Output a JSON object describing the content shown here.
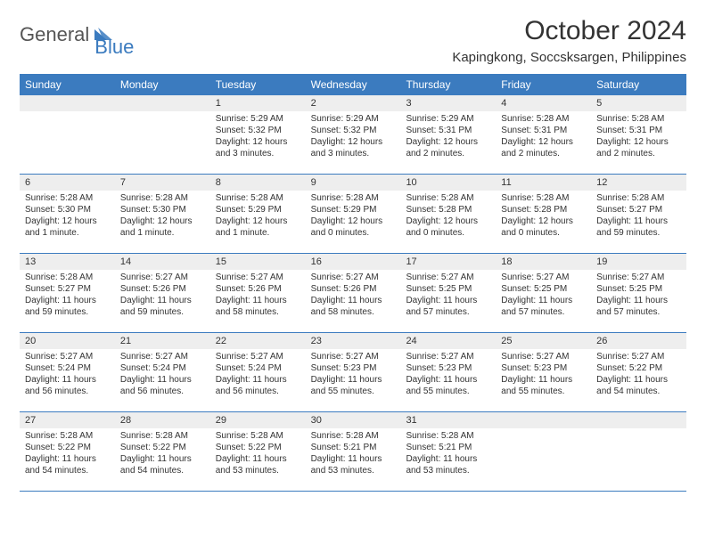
{
  "logo": {
    "part1": "General",
    "part2": "Blue"
  },
  "title": "October 2024",
  "location": "Kapingkong, Soccsksargen, Philippines",
  "colors": {
    "header_bg": "#3b7bbf",
    "header_text": "#ffffff",
    "daynum_bg": "#eeeeee",
    "border": "#3b7bbf",
    "text": "#333333",
    "logo_blue": "#3b7bbf",
    "logo_gray": "#555555",
    "background": "#ffffff"
  },
  "fonts": {
    "title_size": 30,
    "location_size": 15,
    "header_cell_size": 12,
    "daynum_size": 11,
    "body_size": 10
  },
  "day_headers": [
    "Sunday",
    "Monday",
    "Tuesday",
    "Wednesday",
    "Thursday",
    "Friday",
    "Saturday"
  ],
  "weeks": [
    [
      {
        "empty": true
      },
      {
        "empty": true
      },
      {
        "num": "1",
        "sunrise": "Sunrise: 5:29 AM",
        "sunset": "Sunset: 5:32 PM",
        "daylight1": "Daylight: 12 hours",
        "daylight2": "and 3 minutes."
      },
      {
        "num": "2",
        "sunrise": "Sunrise: 5:29 AM",
        "sunset": "Sunset: 5:32 PM",
        "daylight1": "Daylight: 12 hours",
        "daylight2": "and 3 minutes."
      },
      {
        "num": "3",
        "sunrise": "Sunrise: 5:29 AM",
        "sunset": "Sunset: 5:31 PM",
        "daylight1": "Daylight: 12 hours",
        "daylight2": "and 2 minutes."
      },
      {
        "num": "4",
        "sunrise": "Sunrise: 5:28 AM",
        "sunset": "Sunset: 5:31 PM",
        "daylight1": "Daylight: 12 hours",
        "daylight2": "and 2 minutes."
      },
      {
        "num": "5",
        "sunrise": "Sunrise: 5:28 AM",
        "sunset": "Sunset: 5:31 PM",
        "daylight1": "Daylight: 12 hours",
        "daylight2": "and 2 minutes."
      }
    ],
    [
      {
        "num": "6",
        "sunrise": "Sunrise: 5:28 AM",
        "sunset": "Sunset: 5:30 PM",
        "daylight1": "Daylight: 12 hours",
        "daylight2": "and 1 minute."
      },
      {
        "num": "7",
        "sunrise": "Sunrise: 5:28 AM",
        "sunset": "Sunset: 5:30 PM",
        "daylight1": "Daylight: 12 hours",
        "daylight2": "and 1 minute."
      },
      {
        "num": "8",
        "sunrise": "Sunrise: 5:28 AM",
        "sunset": "Sunset: 5:29 PM",
        "daylight1": "Daylight: 12 hours",
        "daylight2": "and 1 minute."
      },
      {
        "num": "9",
        "sunrise": "Sunrise: 5:28 AM",
        "sunset": "Sunset: 5:29 PM",
        "daylight1": "Daylight: 12 hours",
        "daylight2": "and 0 minutes."
      },
      {
        "num": "10",
        "sunrise": "Sunrise: 5:28 AM",
        "sunset": "Sunset: 5:28 PM",
        "daylight1": "Daylight: 12 hours",
        "daylight2": "and 0 minutes."
      },
      {
        "num": "11",
        "sunrise": "Sunrise: 5:28 AM",
        "sunset": "Sunset: 5:28 PM",
        "daylight1": "Daylight: 12 hours",
        "daylight2": "and 0 minutes."
      },
      {
        "num": "12",
        "sunrise": "Sunrise: 5:28 AM",
        "sunset": "Sunset: 5:27 PM",
        "daylight1": "Daylight: 11 hours",
        "daylight2": "and 59 minutes."
      }
    ],
    [
      {
        "num": "13",
        "sunrise": "Sunrise: 5:28 AM",
        "sunset": "Sunset: 5:27 PM",
        "daylight1": "Daylight: 11 hours",
        "daylight2": "and 59 minutes."
      },
      {
        "num": "14",
        "sunrise": "Sunrise: 5:27 AM",
        "sunset": "Sunset: 5:26 PM",
        "daylight1": "Daylight: 11 hours",
        "daylight2": "and 59 minutes."
      },
      {
        "num": "15",
        "sunrise": "Sunrise: 5:27 AM",
        "sunset": "Sunset: 5:26 PM",
        "daylight1": "Daylight: 11 hours",
        "daylight2": "and 58 minutes."
      },
      {
        "num": "16",
        "sunrise": "Sunrise: 5:27 AM",
        "sunset": "Sunset: 5:26 PM",
        "daylight1": "Daylight: 11 hours",
        "daylight2": "and 58 minutes."
      },
      {
        "num": "17",
        "sunrise": "Sunrise: 5:27 AM",
        "sunset": "Sunset: 5:25 PM",
        "daylight1": "Daylight: 11 hours",
        "daylight2": "and 57 minutes."
      },
      {
        "num": "18",
        "sunrise": "Sunrise: 5:27 AM",
        "sunset": "Sunset: 5:25 PM",
        "daylight1": "Daylight: 11 hours",
        "daylight2": "and 57 minutes."
      },
      {
        "num": "19",
        "sunrise": "Sunrise: 5:27 AM",
        "sunset": "Sunset: 5:25 PM",
        "daylight1": "Daylight: 11 hours",
        "daylight2": "and 57 minutes."
      }
    ],
    [
      {
        "num": "20",
        "sunrise": "Sunrise: 5:27 AM",
        "sunset": "Sunset: 5:24 PM",
        "daylight1": "Daylight: 11 hours",
        "daylight2": "and 56 minutes."
      },
      {
        "num": "21",
        "sunrise": "Sunrise: 5:27 AM",
        "sunset": "Sunset: 5:24 PM",
        "daylight1": "Daylight: 11 hours",
        "daylight2": "and 56 minutes."
      },
      {
        "num": "22",
        "sunrise": "Sunrise: 5:27 AM",
        "sunset": "Sunset: 5:24 PM",
        "daylight1": "Daylight: 11 hours",
        "daylight2": "and 56 minutes."
      },
      {
        "num": "23",
        "sunrise": "Sunrise: 5:27 AM",
        "sunset": "Sunset: 5:23 PM",
        "daylight1": "Daylight: 11 hours",
        "daylight2": "and 55 minutes."
      },
      {
        "num": "24",
        "sunrise": "Sunrise: 5:27 AM",
        "sunset": "Sunset: 5:23 PM",
        "daylight1": "Daylight: 11 hours",
        "daylight2": "and 55 minutes."
      },
      {
        "num": "25",
        "sunrise": "Sunrise: 5:27 AM",
        "sunset": "Sunset: 5:23 PM",
        "daylight1": "Daylight: 11 hours",
        "daylight2": "and 55 minutes."
      },
      {
        "num": "26",
        "sunrise": "Sunrise: 5:27 AM",
        "sunset": "Sunset: 5:22 PM",
        "daylight1": "Daylight: 11 hours",
        "daylight2": "and 54 minutes."
      }
    ],
    [
      {
        "num": "27",
        "sunrise": "Sunrise: 5:28 AM",
        "sunset": "Sunset: 5:22 PM",
        "daylight1": "Daylight: 11 hours",
        "daylight2": "and 54 minutes."
      },
      {
        "num": "28",
        "sunrise": "Sunrise: 5:28 AM",
        "sunset": "Sunset: 5:22 PM",
        "daylight1": "Daylight: 11 hours",
        "daylight2": "and 54 minutes."
      },
      {
        "num": "29",
        "sunrise": "Sunrise: 5:28 AM",
        "sunset": "Sunset: 5:22 PM",
        "daylight1": "Daylight: 11 hours",
        "daylight2": "and 53 minutes."
      },
      {
        "num": "30",
        "sunrise": "Sunrise: 5:28 AM",
        "sunset": "Sunset: 5:21 PM",
        "daylight1": "Daylight: 11 hours",
        "daylight2": "and 53 minutes."
      },
      {
        "num": "31",
        "sunrise": "Sunrise: 5:28 AM",
        "sunset": "Sunset: 5:21 PM",
        "daylight1": "Daylight: 11 hours",
        "daylight2": "and 53 minutes."
      },
      {
        "empty": true
      },
      {
        "empty": true
      }
    ]
  ]
}
